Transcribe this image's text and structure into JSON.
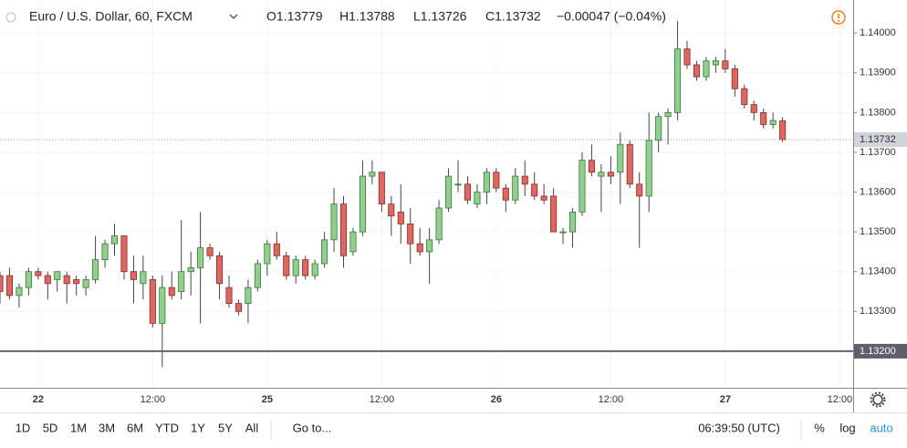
{
  "header": {
    "symbol": "Euro / U.S. Dollar, 60, FXCM",
    "open": "O1.13779",
    "high": "H1.13788",
    "low": "L1.13726",
    "close": "C1.13732",
    "change": "−0.00047 (−0.04%)"
  },
  "chart_data": {
    "type": "candlestick",
    "x": [
      -4,
      -3,
      -2,
      -1,
      0,
      1,
      2,
      3,
      4,
      5,
      6,
      7,
      8,
      9,
      10,
      11,
      12,
      13,
      14,
      15,
      16,
      17,
      18,
      19,
      20,
      21,
      22,
      23,
      24,
      25,
      26,
      27,
      28,
      29,
      30,
      31,
      32,
      33,
      34,
      35,
      36,
      37,
      38,
      39,
      40,
      41,
      42,
      43,
      44,
      45,
      46,
      47,
      48,
      49,
      50,
      51,
      52,
      53,
      54,
      55,
      56,
      57,
      58,
      59,
      60,
      61,
      62,
      63,
      64,
      65,
      66,
      67,
      68,
      69,
      70,
      71,
      72,
      73,
      74,
      75,
      76,
      77,
      78
    ],
    "open": [
      1.1339,
      1.1339,
      1.1334,
      1.1336,
      1.134,
      1.1339,
      1.1338,
      1.1339,
      1.1338,
      1.1336,
      1.1338,
      1.1343,
      1.1347,
      1.1349,
      1.134,
      1.1337,
      1.1338,
      1.1327,
      1.1336,
      1.1335,
      1.134,
      1.1341,
      1.1346,
      1.1344,
      1.1336,
      1.1332,
      1.1332,
      1.1336,
      1.1342,
      1.1347,
      1.1344,
      1.1339,
      1.1343,
      1.1339,
      1.1342,
      1.1348,
      1.1357,
      1.1345,
      1.135,
      1.1364,
      1.1365,
      1.1357,
      1.1355,
      1.1352,
      1.1347,
      1.1345,
      1.1348,
      1.1356,
      1.1362,
      1.1362,
      1.1357,
      1.136,
      1.1365,
      1.1361,
      1.1358,
      1.1364,
      1.1362,
      1.1359,
      1.1359,
      1.135,
      1.135,
      1.1355,
      1.1368,
      1.1364,
      1.1365,
      1.1365,
      1.1372,
      1.1362,
      1.1359,
      1.1373,
      1.1379,
      1.138,
      1.1396,
      1.1392,
      1.1389,
      1.1392,
      1.1393,
      1.1391,
      1.1386,
      1.1382,
      1.138,
      1.1377,
      1.13779
    ],
    "high": [
      1.134,
      1.1341,
      1.1337,
      1.1341,
      1.1341,
      1.134,
      1.134,
      1.134,
      1.1339,
      1.1339,
      1.1349,
      1.1348,
      1.1352,
      1.1349,
      1.1344,
      1.1344,
      1.1339,
      1.1339,
      1.134,
      1.1353,
      1.1345,
      1.1355,
      1.1347,
      1.1345,
      1.1339,
      1.1333,
      1.1338,
      1.1343,
      1.1348,
      1.135,
      1.1345,
      1.1344,
      1.1344,
      1.1343,
      1.135,
      1.1361,
      1.1359,
      1.1351,
      1.1368,
      1.1368,
      1.1365,
      1.1359,
      1.1362,
      1.1356,
      1.1351,
      1.1351,
      1.1358,
      1.1366,
      1.1368,
      1.1364,
      1.1362,
      1.1366,
      1.1366,
      1.1362,
      1.1366,
      1.1368,
      1.1365,
      1.1362,
      1.1361,
      1.1351,
      1.1356,
      1.137,
      1.1372,
      1.1367,
      1.1369,
      1.1375,
      1.1373,
      1.1365,
      1.138,
      1.138,
      1.1381,
      1.1403,
      1.1398,
      1.1393,
      1.1394,
      1.1394,
      1.1396,
      1.1392,
      1.1387,
      1.1383,
      1.1381,
      1.138,
      1.13788
    ],
    "low": [
      1.1332,
      1.1333,
      1.1331,
      1.1334,
      1.1338,
      1.1333,
      1.1335,
      1.1332,
      1.1334,
      1.1334,
      1.1337,
      1.1341,
      1.1344,
      1.1338,
      1.1332,
      1.1333,
      1.1326,
      1.1316,
      1.1333,
      1.1333,
      1.1334,
      1.1327,
      1.1343,
      1.1333,
      1.1331,
      1.1329,
      1.1327,
      1.1335,
      1.1339,
      1.1343,
      1.1338,
      1.1337,
      1.1338,
      1.1338,
      1.1341,
      1.1345,
      1.1341,
      1.1344,
      1.1349,
      1.1362,
      1.1355,
      1.1349,
      1.1347,
      1.1342,
      1.1344,
      1.1337,
      1.1347,
      1.1355,
      1.136,
      1.1357,
      1.1356,
      1.1357,
      1.136,
      1.1355,
      1.1357,
      1.1359,
      1.1358,
      1.1357,
      1.135,
      1.1347,
      1.1346,
      1.1354,
      1.1364,
      1.1355,
      1.1362,
      1.1357,
      1.1361,
      1.1346,
      1.1355,
      1.137,
      1.1372,
      1.1378,
      1.1391,
      1.1388,
      1.1388,
      1.139,
      1.139,
      1.1384,
      1.1381,
      1.1378,
      1.1376,
      1.1376,
      1.13726
    ],
    "close": [
      1.1335,
      1.1334,
      1.1336,
      1.134,
      1.1339,
      1.1337,
      1.134,
      1.1337,
      1.1337,
      1.1338,
      1.1343,
      1.1347,
      1.1349,
      1.134,
      1.1338,
      1.134,
      1.1327,
      1.1336,
      1.1334,
      1.134,
      1.1341,
      1.1346,
      1.1344,
      1.1337,
      1.1332,
      1.133,
      1.1336,
      1.1342,
      1.1347,
      1.1344,
      1.1339,
      1.1343,
      1.1339,
      1.1342,
      1.1348,
      1.1357,
      1.1344,
      1.135,
      1.1364,
      1.1365,
      1.1357,
      1.1354,
      1.1352,
      1.1347,
      1.1345,
      1.1348,
      1.1356,
      1.1364,
      1.1362,
      1.1358,
      1.136,
      1.1365,
      1.1361,
      1.1358,
      1.1364,
      1.1362,
      1.1359,
      1.1358,
      1.135,
      1.135,
      1.1355,
      1.1368,
      1.1365,
      1.1365,
      1.1364,
      1.1372,
      1.1362,
      1.1359,
      1.1373,
      1.1379,
      1.138,
      1.1396,
      1.1392,
      1.1389,
      1.1393,
      1.1393,
      1.1391,
      1.1386,
      1.1382,
      1.138,
      1.1377,
      1.1378,
      1.13732
    ],
    "up_color": "#93cf8c",
    "down_color": "#e3655f",
    "xlim": [
      -4,
      85.4
    ],
    "ylim": [
      1.13108,
      1.14083
    ],
    "xticks": [
      {
        "value": 0,
        "label": "22"
      },
      {
        "value": 12,
        "label": "12:00"
      },
      {
        "value": 24,
        "label": "25"
      },
      {
        "value": 36,
        "label": "12:00"
      },
      {
        "value": 48,
        "label": "26"
      },
      {
        "value": 60,
        "label": "12:00"
      },
      {
        "value": 72,
        "label": "27"
      },
      {
        "value": 84,
        "label": "12:00"
      }
    ],
    "yticks": [
      {
        "value": 1.133,
        "label": "1.13300"
      },
      {
        "value": 1.134,
        "label": "1.13400"
      },
      {
        "value": 1.135,
        "label": "1.13500"
      },
      {
        "value": 1.136,
        "label": "1.13600"
      },
      {
        "value": 1.137,
        "label": "1.13700"
      },
      {
        "value": 1.138,
        "label": "1.13800"
      },
      {
        "value": 1.139,
        "label": "1.13900"
      },
      {
        "value": 1.14,
        "label": "1.14000"
      }
    ],
    "grid": true,
    "last_price": {
      "value": 1.13732,
      "label": "1.13732"
    },
    "hline": {
      "value": 1.132,
      "label": "1.13200"
    }
  },
  "toolbar": {
    "ranges": [
      "1D",
      "5D",
      "1M",
      "3M",
      "6M",
      "YTD",
      "1Y",
      "5Y",
      "All"
    ],
    "goto": "Go to...",
    "time": "06:39:50 (UTC)",
    "percent": "%",
    "log": "log",
    "auto": "auto"
  }
}
